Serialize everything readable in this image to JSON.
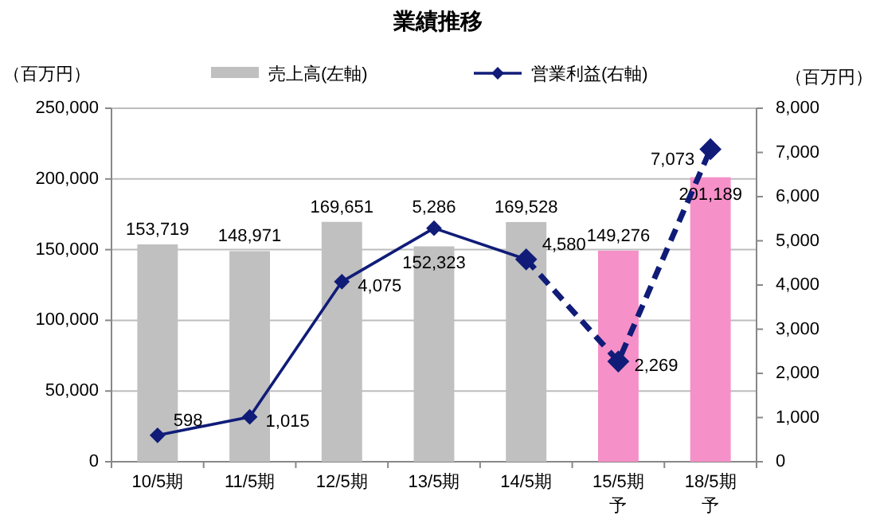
{
  "chart_data": {
    "type": "bar",
    "title": "業績推移",
    "ylabel": "（百万円）",
    "y2label": "（百万円）",
    "categories": [
      "10/5期",
      "11/5期",
      "12/5期",
      "13/5期",
      "14/5期",
      "15/5期予",
      "18/5期予"
    ],
    "series": [
      {
        "name": "売上高(左軸)",
        "color": "#c0c0c0",
        "colors": [
          "#c0c0c0",
          "#c0c0c0",
          "#c0c0c0",
          "#c0c0c0",
          "#c0c0c0",
          "#f690c8",
          "#f690c8"
        ],
        "values": [
          153719,
          148971,
          169651,
          152323,
          169528,
          149276,
          201189
        ],
        "value_labels": [
          "153,719",
          "148,971",
          "169,651",
          "152,323",
          "169,528",
          "149,276",
          "201,189"
        ]
      },
      {
        "name": "営業利益(右軸)",
        "type": "line",
        "axis": "y2",
        "color": "#101c78",
        "marker": "diamond",
        "line_style": "solid",
        "values": [
          598,
          1015,
          4075,
          5286,
          4580,
          null,
          null
        ],
        "value_labels": [
          "598",
          "1,015",
          "4,075",
          "5,286",
          "4,580",
          null,
          null
        ]
      },
      {
        "type": "line",
        "axis": "y2",
        "color": "#101c78",
        "marker": "diamond",
        "line_style": "dashed",
        "values": [
          null,
          null,
          null,
          null,
          4580,
          2269,
          7073
        ],
        "value_labels": [
          null,
          null,
          null,
          null,
          null,
          "2,269",
          "7,073"
        ]
      }
    ],
    "ylim": [
      0,
      250000
    ],
    "yticks": [
      {
        "value": 0,
        "label": "0"
      },
      {
        "value": 50000,
        "label": "50,000"
      },
      {
        "value": 100000,
        "label": "100,000"
      },
      {
        "value": 150000,
        "label": "150,000"
      },
      {
        "value": 200000,
        "label": "200,000"
      },
      {
        "value": 250000,
        "label": "250,000"
      }
    ],
    "y2lim": [
      0,
      8000
    ],
    "y2ticks": [
      {
        "value": 0,
        "label": "0"
      },
      {
        "value": 1000,
        "label": "1,000"
      },
      {
        "value": 2000,
        "label": "2,000"
      },
      {
        "value": 3000,
        "label": "3,000"
      },
      {
        "value": 4000,
        "label": "4,000"
      },
      {
        "value": 5000,
        "label": "5,000"
      },
      {
        "value": 6000,
        "label": "6,000"
      },
      {
        "value": 7000,
        "label": "7,000"
      },
      {
        "value": 8000,
        "label": "8,000"
      }
    ],
    "grid": "y",
    "legend": "top"
  }
}
